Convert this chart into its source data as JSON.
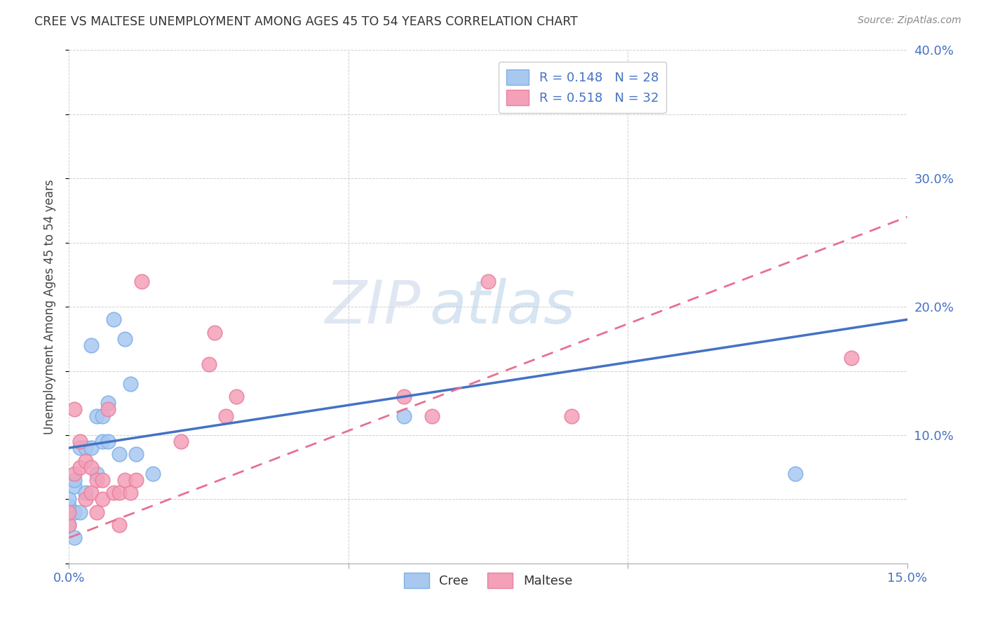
{
  "title": "CREE VS MALTESE UNEMPLOYMENT AMONG AGES 45 TO 54 YEARS CORRELATION CHART",
  "source": "Source: ZipAtlas.com",
  "ylabel": "Unemployment Among Ages 45 to 54 years",
  "xlim": [
    0.0,
    0.15
  ],
  "ylim": [
    0.0,
    0.4
  ],
  "cree_R": 0.148,
  "cree_N": 28,
  "maltese_R": 0.518,
  "maltese_N": 32,
  "cree_color": "#A8C8F0",
  "maltese_color": "#F4A0B8",
  "cree_edge_color": "#7EB0E8",
  "maltese_edge_color": "#E880A0",
  "cree_line_color": "#4472C4",
  "maltese_line_color": "#E87090",
  "watermark_zip": "ZIP",
  "watermark_atlas": "atlas",
  "cree_x": [
    0.0,
    0.0,
    0.0,
    0.0,
    0.001,
    0.001,
    0.001,
    0.001,
    0.002,
    0.002,
    0.003,
    0.003,
    0.004,
    0.004,
    0.005,
    0.005,
    0.006,
    0.006,
    0.007,
    0.007,
    0.008,
    0.009,
    0.01,
    0.011,
    0.012,
    0.015,
    0.06,
    0.13
  ],
  "cree_y": [
    0.03,
    0.04,
    0.045,
    0.05,
    0.02,
    0.04,
    0.06,
    0.065,
    0.04,
    0.09,
    0.055,
    0.09,
    0.09,
    0.17,
    0.07,
    0.115,
    0.095,
    0.115,
    0.095,
    0.125,
    0.19,
    0.085,
    0.175,
    0.14,
    0.085,
    0.07,
    0.115,
    0.07
  ],
  "maltese_x": [
    0.0,
    0.0,
    0.001,
    0.001,
    0.002,
    0.002,
    0.003,
    0.003,
    0.004,
    0.004,
    0.005,
    0.005,
    0.006,
    0.006,
    0.007,
    0.008,
    0.009,
    0.009,
    0.01,
    0.011,
    0.012,
    0.013,
    0.02,
    0.025,
    0.026,
    0.028,
    0.03,
    0.06,
    0.065,
    0.075,
    0.09,
    0.14
  ],
  "maltese_y": [
    0.03,
    0.04,
    0.07,
    0.12,
    0.075,
    0.095,
    0.05,
    0.08,
    0.055,
    0.075,
    0.04,
    0.065,
    0.05,
    0.065,
    0.12,
    0.055,
    0.03,
    0.055,
    0.065,
    0.055,
    0.065,
    0.22,
    0.095,
    0.155,
    0.18,
    0.115,
    0.13,
    0.13,
    0.115,
    0.22,
    0.115,
    0.16
  ],
  "cree_line_x0": 0.0,
  "cree_line_y0": 0.09,
  "cree_line_x1": 0.15,
  "cree_line_y1": 0.19,
  "maltese_line_x0": 0.0,
  "maltese_line_y0": 0.02,
  "maltese_line_x1": 0.15,
  "maltese_line_y1": 0.27
}
